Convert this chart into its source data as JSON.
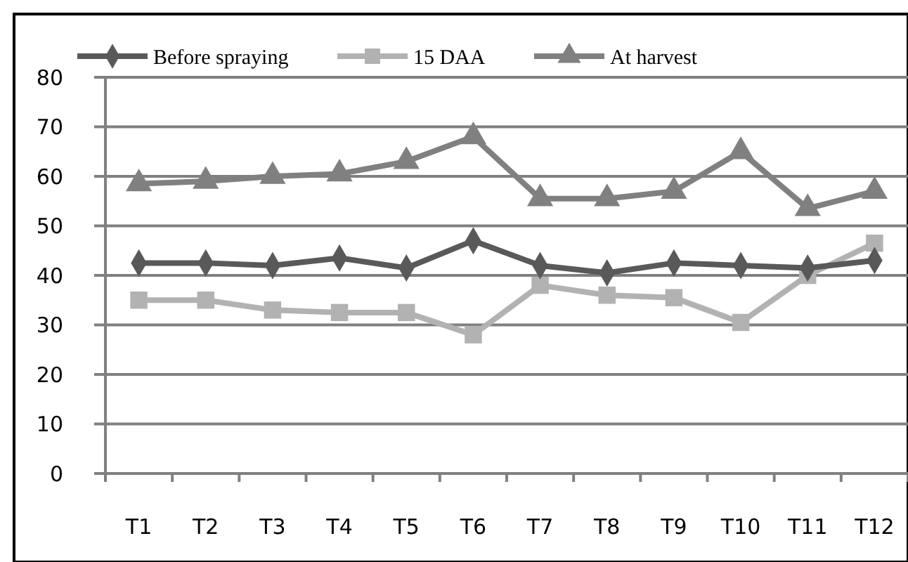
{
  "chart_data": {
    "type": "line",
    "categories": [
      "T1",
      "T2",
      "T3",
      "T4",
      "T5",
      "T6",
      "T7",
      "T8",
      "T9",
      "T10",
      "T11",
      "T12"
    ],
    "series": [
      {
        "name": "Before spraying",
        "color": "#595959",
        "marker": "diamond",
        "values": [
          42.5,
          42.5,
          42,
          43.5,
          41.5,
          47,
          42,
          40.5,
          42.5,
          42,
          41.5,
          43
        ]
      },
      {
        "name": "15 DAA",
        "color": "#b2b2b2",
        "marker": "square",
        "values": [
          35,
          35,
          33,
          32.5,
          32.5,
          28,
          38,
          36,
          35.5,
          30.5,
          40,
          46.5
        ]
      },
      {
        "name": "At harvest",
        "color": "#808080",
        "marker": "triangle",
        "values": [
          58.5,
          59,
          60,
          60.5,
          63,
          68,
          55.5,
          55.5,
          57,
          65,
          53.5,
          57
        ]
      }
    ],
    "ylim": [
      0,
      80
    ],
    "yticks": [
      0,
      10,
      20,
      30,
      40,
      50,
      60,
      70,
      80
    ],
    "grid": "y",
    "legend": "top"
  }
}
